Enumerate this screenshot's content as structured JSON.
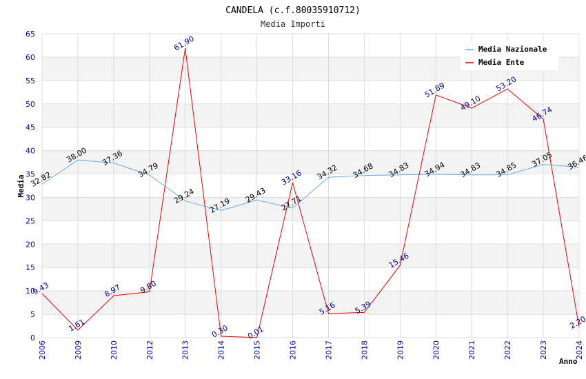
{
  "chart_data": {
    "type": "line",
    "title": "CANDELA (c.f.80035910712)",
    "subtitle": "Media Importi",
    "xlabel": "Anno",
    "ylabel": "Media",
    "ylim": [
      0,
      65
    ],
    "ytick_step": 5,
    "categories": [
      "2006",
      "2009",
      "2010",
      "2012",
      "2013",
      "2014",
      "2015",
      "2016",
      "2017",
      "2018",
      "2019",
      "2020",
      "2021",
      "2022",
      "2023",
      "2024"
    ],
    "series": [
      {
        "name": "Media Nazionale",
        "color": "#66aaee",
        "values": [
          32.82,
          38.0,
          37.36,
          34.79,
          29.24,
          27.19,
          29.43,
          27.71,
          34.32,
          34.68,
          34.83,
          34.94,
          34.83,
          34.85,
          37.05,
          36.46
        ],
        "labels": [
          "32.82",
          "38.00",
          "37.36",
          "34.79",
          "29.24",
          "27.19",
          "29.43",
          "27.71",
          "34.32",
          "34.68",
          "34.83",
          "34.94",
          "34.83",
          "34.85",
          "37.05",
          "36.46"
        ]
      },
      {
        "name": "Media Ente",
        "color": "#ee0000",
        "values": [
          9.43,
          1.61,
          8.97,
          9.8,
          61.9,
          0.3,
          0.01,
          33.16,
          5.16,
          5.39,
          15.46,
          51.89,
          49.1,
          53.2,
          46.74,
          2.2
        ],
        "labels": [
          "9.43",
          "1.61",
          "8.97",
          "9.80",
          "61.90",
          "0.30",
          "0.01",
          "33.16",
          "5.16",
          "5.39",
          "15.46",
          "51.89",
          "49.10",
          "53.20",
          "46.74",
          "2.20"
        ]
      }
    ],
    "legend_position": "top-right",
    "grid": true
  },
  "colors": {
    "band": "#f3f3f3",
    "grid": "#dddddd",
    "tick_text": "#0000aa"
  }
}
